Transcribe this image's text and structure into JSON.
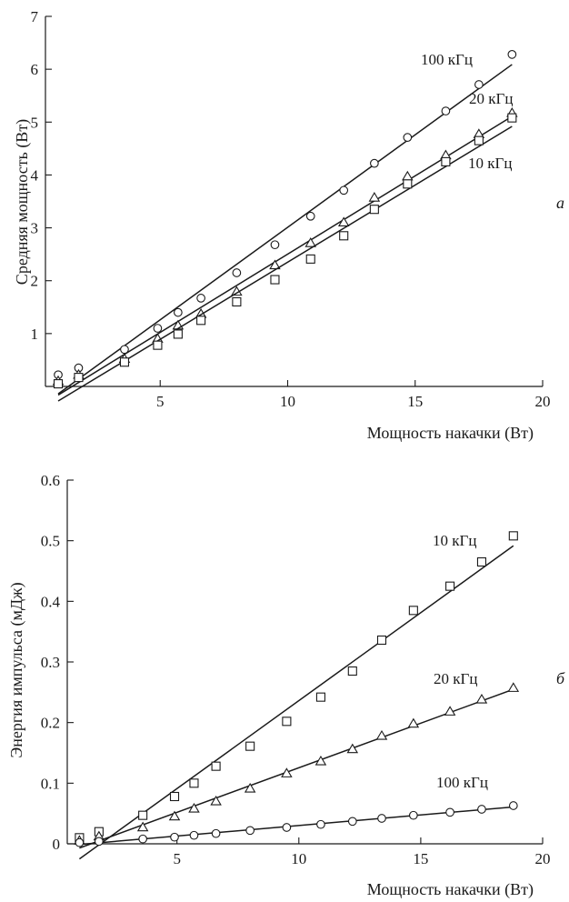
{
  "chart_data": [
    {
      "type": "scatter",
      "panel_label": "а",
      "xlabel": "Мощность накачки (Вт)",
      "ylabel": "Средняя мощность (Вт)",
      "xlim": [
        0.5,
        20
      ],
      "ylim": [
        0,
        7
      ],
      "x_ticks": [
        5,
        10,
        15,
        20
      ],
      "y_ticks": [
        1,
        2,
        3,
        4,
        5,
        6,
        7
      ],
      "x_tick_labels": [
        "5",
        "10",
        "15",
        "20"
      ],
      "y_tick_labels": [
        "1",
        "2",
        "3",
        "4",
        "5",
        "6",
        "7"
      ],
      "grid": false,
      "series": [
        {
          "name": "100 кГц",
          "marker": "circle",
          "x": [
            1.0,
            1.8,
            3.6,
            4.9,
            5.7,
            6.6,
            8.0,
            9.5,
            10.9,
            12.2,
            13.4,
            14.7,
            16.2,
            17.5,
            18.8
          ],
          "y": [
            0.22,
            0.35,
            0.7,
            1.1,
            1.4,
            1.67,
            2.15,
            2.68,
            3.22,
            3.71,
            4.22,
            4.71,
            5.21,
            5.71,
            6.28
          ]
        },
        {
          "name": "20 кГц",
          "marker": "triangle",
          "x": [
            1.0,
            1.8,
            3.6,
            4.9,
            5.7,
            6.6,
            8.0,
            9.5,
            10.9,
            12.2,
            13.4,
            14.7,
            16.2,
            17.5,
            18.8
          ],
          "y": [
            0.1,
            0.22,
            0.52,
            0.9,
            1.15,
            1.37,
            1.79,
            2.29,
            2.71,
            3.1,
            3.57,
            3.97,
            4.37,
            4.77,
            5.17
          ]
        },
        {
          "name": "10 кГц",
          "marker": "square",
          "x": [
            1.0,
            1.8,
            3.6,
            4.9,
            5.7,
            6.6,
            8.0,
            9.5,
            10.9,
            12.2,
            13.4,
            14.7,
            16.2,
            17.5,
            18.8
          ],
          "y": [
            0.05,
            0.17,
            0.46,
            0.78,
            0.99,
            1.25,
            1.6,
            2.02,
            2.41,
            2.85,
            3.35,
            3.83,
            4.25,
            4.65,
            5.08
          ]
        }
      ]
    },
    {
      "type": "scatter",
      "panel_label": "б",
      "xlabel": "Мощность накачки (Вт)",
      "ylabel": "Энергия импульса (мДж)",
      "xlim": [
        0.5,
        20
      ],
      "ylim": [
        0,
        0.6
      ],
      "x_ticks": [
        5,
        10,
        15,
        20
      ],
      "y_ticks": [
        0,
        0.1,
        0.2,
        0.3,
        0.4,
        0.5,
        0.6
      ],
      "x_tick_labels": [
        "5",
        "10",
        "15",
        "20"
      ],
      "y_tick_labels": [
        "0",
        "0.1",
        "0.2",
        "0.3",
        "0.4",
        "0.5",
        "0.6"
      ],
      "grid": false,
      "series": [
        {
          "name": "10 кГц",
          "marker": "square",
          "x": [
            1.0,
            1.8,
            3.6,
            4.9,
            5.7,
            6.6,
            8.0,
            9.5,
            10.9,
            12.2,
            13.4,
            14.7,
            16.2,
            17.5,
            18.8
          ],
          "y": [
            0.01,
            0.02,
            0.047,
            0.078,
            0.1,
            0.128,
            0.161,
            0.202,
            0.242,
            0.285,
            0.336,
            0.385,
            0.425,
            0.465,
            0.508
          ]
        },
        {
          "name": "20 кГц",
          "marker": "triangle",
          "x": [
            1.0,
            1.8,
            3.6,
            4.9,
            5.7,
            6.6,
            8.0,
            9.5,
            10.9,
            12.2,
            13.4,
            14.7,
            16.2,
            17.5,
            18.8
          ],
          "y": [
            0.005,
            0.012,
            0.027,
            0.045,
            0.058,
            0.07,
            0.091,
            0.116,
            0.136,
            0.156,
            0.178,
            0.198,
            0.218,
            0.238,
            0.257
          ]
        },
        {
          "name": "100 кГц",
          "marker": "circle",
          "x": [
            1.0,
            1.8,
            3.6,
            4.9,
            5.7,
            6.6,
            8.0,
            9.5,
            10.9,
            12.2,
            13.4,
            14.7,
            16.2,
            17.5,
            18.8
          ],
          "y": [
            0.002,
            0.004,
            0.008,
            0.011,
            0.014,
            0.017,
            0.022,
            0.027,
            0.032,
            0.037,
            0.042,
            0.047,
            0.052,
            0.057,
            0.063
          ]
        }
      ]
    }
  ]
}
